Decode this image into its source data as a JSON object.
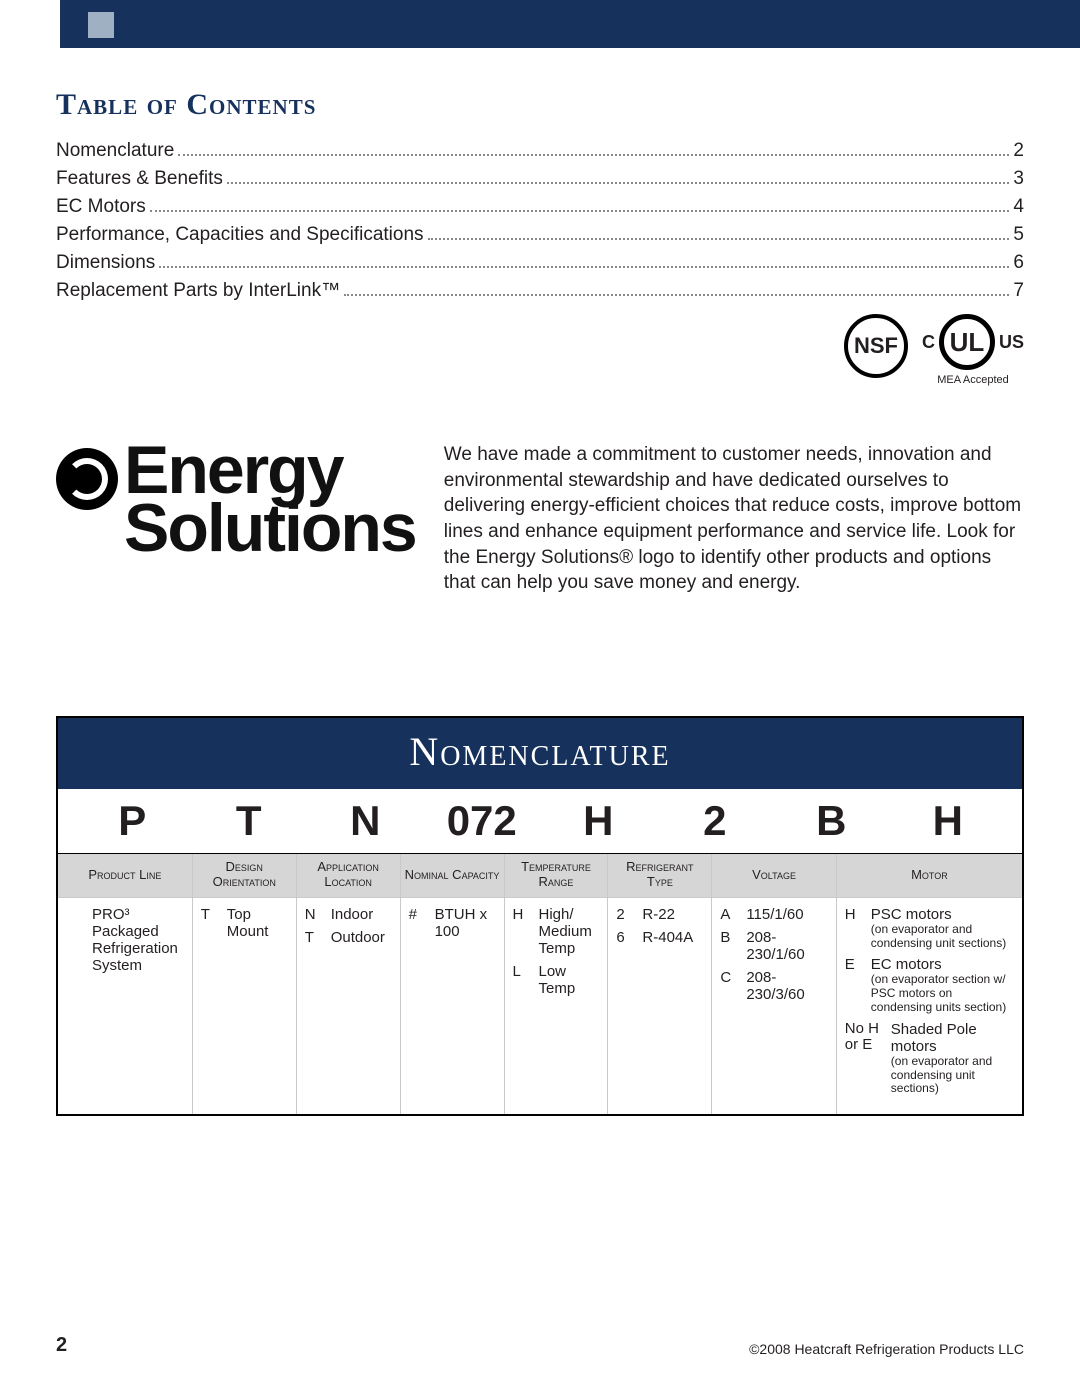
{
  "colors": {
    "navy": "#16325c",
    "slate": "#9eb0c2",
    "header_grey": "#d6d6d6",
    "rule_grey": "#c9c9c9",
    "text": "#231f20"
  },
  "toc": {
    "title": "Table of Contents",
    "items": [
      {
        "label": "Nomenclature",
        "page": "2"
      },
      {
        "label": "Features & Benefits",
        "page": "3"
      },
      {
        "label": "EC Motors",
        "page": "4"
      },
      {
        "label": "Performance, Capacities and Specifications",
        "page": "5"
      },
      {
        "label": "Dimensions",
        "page": "6"
      },
      {
        "label": "Replacement Parts by InterLink™",
        "page": "7"
      }
    ]
  },
  "cert": {
    "nsf": "NSF",
    "ul_c": "C",
    "ul": "UL",
    "ul_us": "US",
    "mea": "MEA Accepted"
  },
  "energy": {
    "line1": "Energy",
    "line2": "Solutions",
    "desc": "We have made a commitment to customer needs, innovation and environmental stewardship and have dedicated ourselves to delivering energy-efficient choices that reduce costs, improve bottom lines and enhance equipment performance and service life. Look for the Energy Solutions® logo to identify other products and options that can help you save money and energy."
  },
  "nom": {
    "title": "Nomenclature",
    "code": [
      "P",
      "T",
      "N",
      "072",
      "H",
      "2",
      "B",
      "H"
    ],
    "columns": [
      {
        "head": "Product Line",
        "rows": [
          {
            "k": "",
            "v": "PRO³ Packaged Refrigeration System"
          }
        ]
      },
      {
        "head": "Design Orientation",
        "rows": [
          {
            "k": "T",
            "v": "Top Mount"
          }
        ]
      },
      {
        "head": "Application Location",
        "rows": [
          {
            "k": "N",
            "v": "Indoor"
          },
          {
            "k": "T",
            "v": "Outdoor"
          }
        ]
      },
      {
        "head": "Nominal Capacity",
        "rows": [
          {
            "k": "#",
            "v": "BTUH x 100"
          }
        ]
      },
      {
        "head": "Temperature Range",
        "rows": [
          {
            "k": "H",
            "v": "High/ Medium Temp"
          },
          {
            "k": "L",
            "v": "Low Temp"
          }
        ]
      },
      {
        "head": "Refrigerant Type",
        "rows": [
          {
            "k": "2",
            "v": "R-22"
          },
          {
            "k": "6",
            "v": "R-404A"
          }
        ]
      },
      {
        "head": "Voltage",
        "rows": [
          {
            "k": "A",
            "v": "115/1/60"
          },
          {
            "k": "B",
            "v": "208-230/1/60"
          },
          {
            "k": "C",
            "v": "208-230/3/60"
          }
        ]
      },
      {
        "head": "Motor",
        "rows": [
          {
            "k": "H",
            "v": "PSC motors",
            "note": "(on evaporator and condensing unit sections)"
          },
          {
            "k": "E",
            "v": "EC motors",
            "note": "(on evaporator section w/ PSC motors on condensing units section)"
          },
          {
            "k": "No H or E",
            "v": "Shaded Pole motors",
            "note": "(on evaporator and condensing unit sections)"
          }
        ]
      }
    ]
  },
  "footer": {
    "page": "2",
    "copyright": "©2008 Heatcraft Refrigeration Products LLC"
  }
}
